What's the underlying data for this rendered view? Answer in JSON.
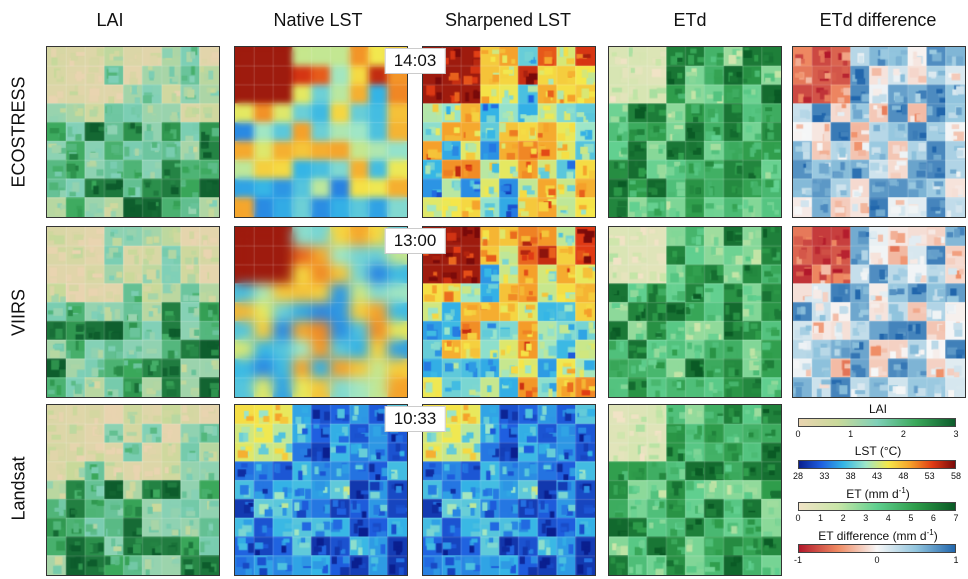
{
  "columns": [
    "LAI",
    "Native LST",
    "Sharpened LST",
    "ETd",
    "ETd difference"
  ],
  "rows": [
    {
      "label": "ECOSTRESS",
      "time": "14:03"
    },
    {
      "label": "VIIRS",
      "time": "13:00"
    },
    {
      "label": "Landsat",
      "time": "10:33"
    }
  ],
  "legend": {
    "lai": {
      "title": "LAI",
      "ticks": [
        "0",
        "1",
        "2",
        "3"
      ]
    },
    "lst": {
      "title": "LST (°C)",
      "ticks": [
        "28",
        "33",
        "38",
        "43",
        "48",
        "53",
        "58"
      ]
    },
    "et": {
      "title_main": "ET (mm d",
      "title_sup": "-1",
      "title_end": ")",
      "ticks": [
        "0",
        "1",
        "2",
        "3",
        "4",
        "5",
        "6",
        "7"
      ]
    },
    "etdiff": {
      "title_main": "ET difference (mm d",
      "title_sup": "-1",
      "title_end": ")",
      "ticks": [
        "-1",
        "0",
        "1"
      ]
    }
  },
  "colors": {
    "lai_ramp": [
      "#e9d4b0",
      "#c9d99a",
      "#7fd0b8",
      "#3aa85a",
      "#0d5c2c"
    ],
    "lst_ramp": [
      "#0a1f8f",
      "#1f5fe0",
      "#35b6e6",
      "#9ee6c8",
      "#f5e84a",
      "#f5a02a",
      "#e03a14",
      "#7a0a0a"
    ],
    "et_ramp": [
      "#f1e3c6",
      "#c9e6a8",
      "#5fcf8f",
      "#2e9c4a",
      "#0a5a25"
    ],
    "etdiff_ramp": [
      "#b2182b",
      "#ef8a62",
      "#f7f7f7",
      "#92c5de",
      "#2166ac"
    ]
  }
}
